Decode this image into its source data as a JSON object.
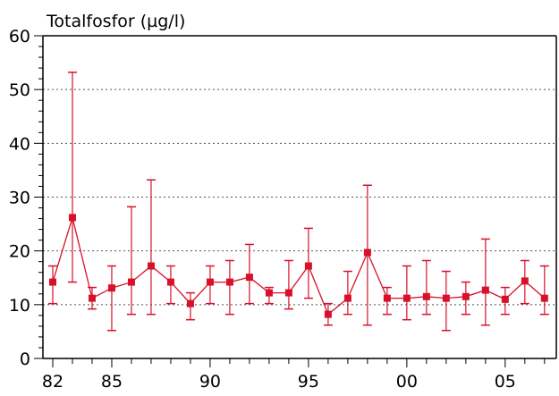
{
  "chart_data": {
    "type": "line",
    "title": "Totalfosfor (µg/l)",
    "xlabel": "",
    "ylabel": "",
    "xlim": [
      1981.5,
      2007.6
    ],
    "ylim": [
      0,
      60
    ],
    "y_ticks": [
      0,
      10,
      20,
      30,
      40,
      50,
      60
    ],
    "x_ticks": [
      {
        "value": 1982,
        "label": "82"
      },
      {
        "value": 1985,
        "label": "85"
      },
      {
        "value": 1990,
        "label": "90"
      },
      {
        "value": 1995,
        "label": "95"
      },
      {
        "value": 2000,
        "label": "00"
      },
      {
        "value": 2005,
        "label": "05"
      }
    ],
    "grid": {
      "y": true,
      "x": false,
      "style": "dotted"
    },
    "color": "#d8102a",
    "series": [
      {
        "x": [
          1982,
          1983,
          1984,
          1985,
          1986,
          1987,
          1988,
          1989,
          1990,
          1991,
          1992,
          1993,
          1994,
          1995,
          1996,
          1997,
          1998,
          1999,
          2000,
          2001,
          2002,
          2003,
          2004,
          2005,
          2006,
          2007
        ],
        "mean": [
          14.2,
          26.2,
          11.2,
          13.1,
          14.2,
          17.2,
          14.2,
          10.2,
          14.2,
          14.2,
          15.1,
          12.2,
          12.2,
          17.2,
          8.2,
          11.2,
          19.7,
          11.2,
          11.2,
          11.5,
          11.2,
          11.5,
          12.7,
          11.0,
          14.4,
          11.2
        ],
        "min": [
          10.2,
          14.2,
          9.2,
          5.2,
          8.2,
          8.2,
          10.2,
          7.2,
          10.2,
          8.2,
          10.2,
          10.2,
          9.2,
          11.2,
          6.2,
          8.2,
          6.2,
          8.2,
          7.2,
          8.2,
          5.2,
          8.2,
          6.2,
          8.2,
          10.2,
          8.2
        ],
        "max": [
          17.2,
          53.2,
          13.2,
          17.2,
          28.2,
          33.2,
          17.2,
          12.2,
          17.2,
          18.2,
          21.2,
          13.2,
          18.2,
          24.2,
          10.2,
          16.2,
          32.2,
          13.2,
          17.2,
          18.2,
          16.2,
          14.2,
          22.2,
          13.2,
          18.2,
          17.2
        ]
      }
    ]
  }
}
